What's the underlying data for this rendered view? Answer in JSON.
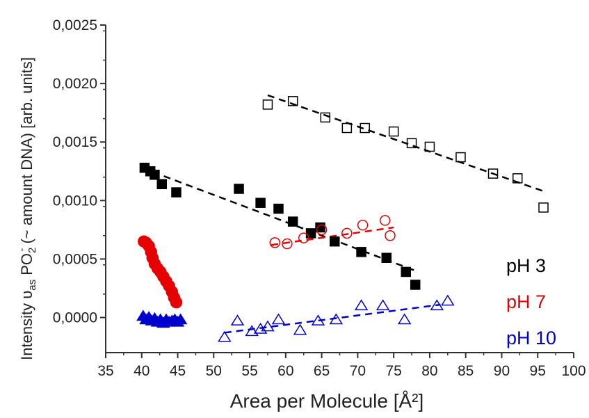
{
  "chart_data": {
    "type": "scatter",
    "title": "",
    "xlabel": "Area per Molecule [Å²]",
    "ylabel": {
      "prefix": "Intensity υ",
      "prefix_sub": "as",
      "mid": " PO",
      "mid_sub": "2",
      "mid_sup": "-",
      "suffix": " (~ amount DNA) [arb. units]"
    },
    "xlim": [
      35,
      100
    ],
    "ylim": [
      -0.0003,
      0.0025
    ],
    "xticks": [
      35,
      40,
      45,
      50,
      55,
      60,
      65,
      70,
      75,
      80,
      85,
      90,
      95,
      100
    ],
    "yticks": [
      0.0,
      0.0005,
      0.001,
      0.0015,
      0.002,
      0.0025
    ],
    "ytick_labels": [
      "0,0000",
      "0,0005",
      "0,0010",
      "0,0015",
      "0,0020",
      "0,0025"
    ],
    "grid": false,
    "legend_position": "bottom-right",
    "legend": [
      {
        "label": "pH 3",
        "color": "#000000"
      },
      {
        "label": "pH 7",
        "color": "#e60000"
      },
      {
        "label": "pH 10",
        "color": "#0000cc"
      }
    ],
    "series": [
      {
        "color": "#000000",
        "marker": "square",
        "filled": false,
        "points": [
          [
            57.5,
            0.00182
          ],
          [
            61,
            0.00185
          ],
          [
            65.5,
            0.00171
          ],
          [
            68.5,
            0.00162
          ],
          [
            71,
            0.00162
          ],
          [
            75,
            0.00159
          ],
          [
            77.5,
            0.00149
          ],
          [
            80,
            0.00146
          ],
          [
            84.3,
            0.00137
          ],
          [
            88.8,
            0.00123
          ],
          [
            92.2,
            0.00119
          ],
          [
            95.8,
            0.00094
          ]
        ],
        "fit": [
          [
            57.5,
            0.0019
          ],
          [
            95.8,
            0.00108
          ]
        ]
      },
      {
        "color": "#000000",
        "marker": "square",
        "filled": true,
        "points": [
          [
            40.4,
            0.00128
          ],
          [
            41.2,
            0.00125
          ],
          [
            41.8,
            0.00122
          ],
          [
            42.8,
            0.00114
          ],
          [
            44.8,
            0.00107
          ],
          [
            53.5,
            0.0011
          ],
          [
            56.5,
            0.00098
          ],
          [
            59,
            0.00093
          ],
          [
            61,
            0.00082
          ],
          [
            63.5,
            0.00072
          ],
          [
            64.8,
            0.00077
          ],
          [
            66.8,
            0.00065
          ],
          [
            70.5,
            0.00056
          ],
          [
            74,
            0.00051
          ],
          [
            76.7,
            0.00039
          ],
          [
            78,
            0.00028
          ]
        ],
        "fit": [
          [
            40,
            0.00128
          ],
          [
            78,
            0.0004
          ]
        ]
      },
      {
        "color": "#e60000",
        "marker": "circle",
        "filled": false,
        "points": [
          [
            58.5,
            0.00064
          ],
          [
            60.2,
            0.00063
          ],
          [
            62.5,
            0.00068
          ],
          [
            65,
            0.00075
          ],
          [
            68.5,
            0.00072
          ],
          [
            70.7,
            0.00079
          ],
          [
            73.8,
            0.00083
          ],
          [
            74.5,
            0.0007
          ]
        ],
        "fit": [
          [
            58,
            0.00062
          ],
          [
            75,
            0.00077
          ]
        ]
      },
      {
        "color": "#e60000",
        "marker": "circle",
        "filled": true,
        "points": [
          [
            40.3,
            0.00065
          ],
          [
            40.6,
            0.00064
          ],
          [
            41,
            0.00061
          ],
          [
            41.3,
            0.00056
          ],
          [
            41.5,
            0.00051
          ],
          [
            41.8,
            0.00046
          ],
          [
            42.2,
            0.00042
          ],
          [
            42.6,
            0.00039
          ],
          [
            43,
            0.00035
          ],
          [
            43.4,
            0.00031
          ],
          [
            43.8,
            0.00027
          ],
          [
            44.2,
            0.00022
          ],
          [
            44.5,
            0.00017
          ],
          [
            44.8,
            0.00013
          ]
        ],
        "fit": null
      },
      {
        "color": "#0000cc",
        "marker": "triangle",
        "filled": false,
        "points": [
          [
            51.5,
            -0.00017
          ],
          [
            53.3,
            -3e-05
          ],
          [
            55.3,
            -0.00012
          ],
          [
            56.5,
            -0.0001
          ],
          [
            57.5,
            -8e-05
          ],
          [
            59,
            -2e-05
          ],
          [
            62,
            -0.00011
          ],
          [
            64.5,
            -3e-05
          ],
          [
            67,
            -2e-05
          ],
          [
            70.5,
            0.0001
          ],
          [
            73.5,
            0.0001
          ],
          [
            76.5,
            -2e-05
          ],
          [
            81,
            0.0001
          ],
          [
            82.5,
            0.00014
          ]
        ],
        "fit": [
          [
            51.5,
            -0.00013
          ],
          [
            81.5,
            0.00011
          ]
        ]
      },
      {
        "color": "#0000cc",
        "marker": "triangle",
        "filled": true,
        "points": [
          [
            40.2,
            1e-05
          ],
          [
            40.6,
            -2e-05
          ],
          [
            41,
            0.0
          ],
          [
            41.4,
            -3e-05
          ],
          [
            41.8,
            -1e-05
          ],
          [
            42.2,
            -4e-05
          ],
          [
            42.6,
            -2e-05
          ],
          [
            43,
            -5e-05
          ],
          [
            43.4,
            -2e-05
          ],
          [
            43.8,
            -4e-05
          ],
          [
            44.2,
            -3e-05
          ],
          [
            44.6,
            -2e-05
          ],
          [
            45,
            -4e-05
          ],
          [
            45.4,
            -2e-05
          ]
        ],
        "fit": null
      }
    ]
  }
}
